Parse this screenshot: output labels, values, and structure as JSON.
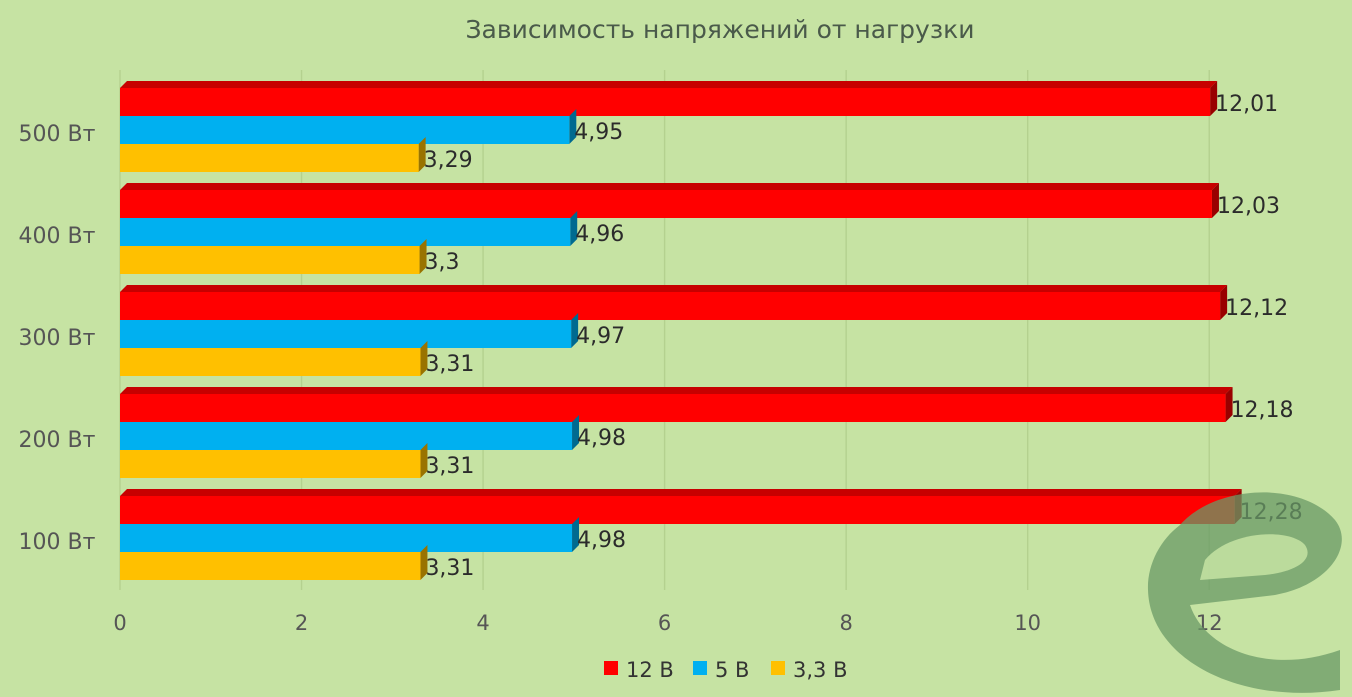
{
  "chart_data": {
    "type": "bar",
    "orientation": "horizontal",
    "title": "Зависимость напряжений от нагрузки",
    "categories": [
      "500 Вт",
      "400 Вт",
      "300 Вт",
      "200 Вт",
      "100 Вт"
    ],
    "series": [
      {
        "name": "12 В",
        "color": "#ff0000",
        "values": [
          12.01,
          12.03,
          12.12,
          12.18,
          12.28
        ],
        "labels": [
          "12,01",
          "12,03",
          "12,12",
          "12,18",
          "12,28"
        ]
      },
      {
        "name": "5 В",
        "color": "#00b0f0",
        "values": [
          4.95,
          4.96,
          4.97,
          4.98,
          4.98
        ],
        "labels": [
          "4,95",
          "4,96",
          "4,97",
          "4,98",
          "4,98"
        ]
      },
      {
        "name": "3,3 В",
        "color": "#ffc000",
        "values": [
          3.29,
          3.3,
          3.31,
          3.31,
          3.31
        ],
        "labels": [
          "3,29",
          "3,3",
          "3,31",
          "3,31",
          "3,31"
        ]
      }
    ],
    "xlim": [
      0,
      13
    ],
    "xticks": [
      0,
      2,
      4,
      6,
      8,
      10,
      12
    ],
    "xtick_labels": [
      "0",
      "2",
      "4",
      "6",
      "8",
      "10",
      "12"
    ],
    "grid": true,
    "legend_position": "bottom",
    "bar_style": "3d"
  }
}
